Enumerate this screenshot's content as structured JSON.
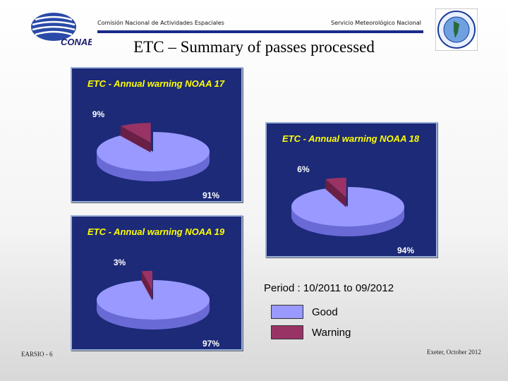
{
  "header": {
    "left_text": "Comisión Nacional de Actividades Espaciales",
    "right_text": "Servicio Meteorológico Nacional",
    "title": "ETC – Summary of passes processed",
    "left_logo_text": "CONAE"
  },
  "chart_data": [
    {
      "type": "pie",
      "title": "ETC - Annual warning NOAA 17",
      "categories": [
        "Good",
        "Warning"
      ],
      "values": [
        91,
        9
      ],
      "labels": [
        "91%",
        "9%"
      ]
    },
    {
      "type": "pie",
      "title": "ETC - Annual warning NOAA 18",
      "categories": [
        "Good",
        "Warning"
      ],
      "values": [
        94,
        6
      ],
      "labels": [
        "94%",
        "6%"
      ]
    },
    {
      "type": "pie",
      "title": "ETC - Annual warning NOAA 19",
      "categories": [
        "Good",
        "Warning"
      ],
      "values": [
        97,
        3
      ],
      "labels": [
        "97%",
        "3%"
      ]
    }
  ],
  "period": "Period : 10/2011 to 09/2012",
  "legend": [
    {
      "label": "Good",
      "color": "#9999ff"
    },
    {
      "label": "Warning",
      "color": "#993366"
    }
  ],
  "colors": {
    "panel_bg": "#1c2a78",
    "good": "#9999ff",
    "good_side": "#6a6ad6",
    "warning": "#993366",
    "warning_side": "#6a1f44",
    "title_text": "#ffff00",
    "label_text": "#ffffff"
  },
  "footer": {
    "left": "EARSIO - 6",
    "right": "Exeter, October 2012"
  }
}
